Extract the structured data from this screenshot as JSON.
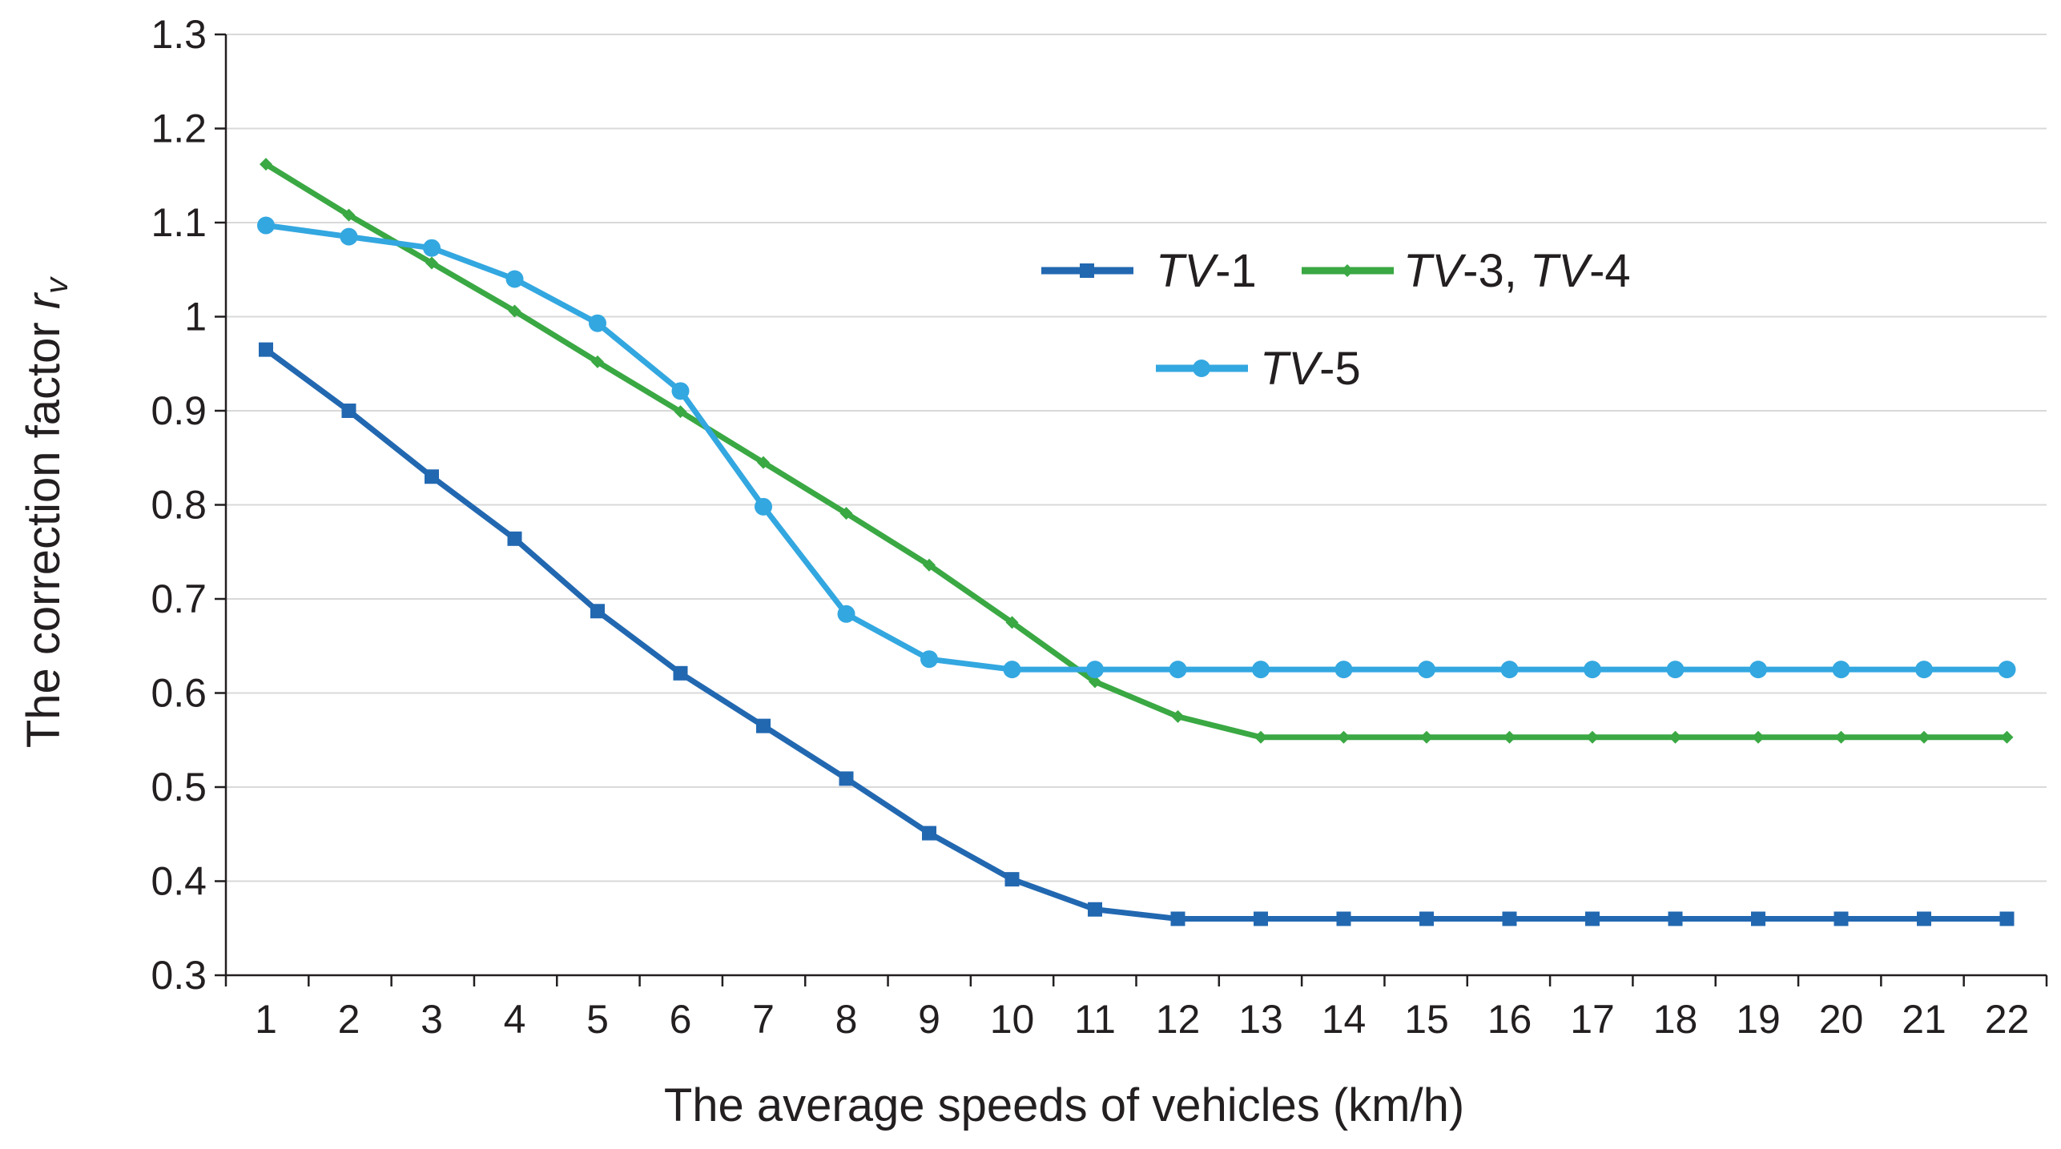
{
  "chart_data": {
    "type": "line",
    "title": "",
    "xlabel": "The average speeds of vehicles (km/h)",
    "ylabel": {
      "text": "The correction factor ",
      "symbol": "r",
      "subscript": "v"
    },
    "x": [
      1,
      2,
      3,
      4,
      5,
      6,
      7,
      8,
      9,
      10,
      11,
      12,
      13,
      14,
      15,
      16,
      17,
      18,
      19,
      20,
      21,
      22
    ],
    "x_tick_labels": [
      "1",
      "2",
      "3",
      "4",
      "5",
      "6",
      "7",
      "8",
      "9",
      "10",
      "11",
      "12",
      "13",
      "14",
      "15",
      "16",
      "17",
      "18",
      "19",
      "20",
      "21",
      "22"
    ],
    "ylim": [
      0.3,
      1.3
    ],
    "y_tick_values": [
      0.3,
      0.4,
      0.5,
      0.6,
      0.7,
      0.8,
      0.9,
      1.0,
      1.1,
      1.2,
      1.3
    ],
    "y_tick_labels": [
      "0.3",
      "0.4",
      "0.5",
      "0.6",
      "0.7",
      "0.8",
      "0.9",
      "1",
      "1.1",
      "1.2",
      "1.3"
    ],
    "grid": "horizontal",
    "legend_position": "upper-right-center",
    "series": [
      {
        "name": "TV-1",
        "legend_parts": [
          {
            "text": "TV",
            "italic": true
          },
          {
            "text": "-1",
            "italic": false
          }
        ],
        "color": "#2268b1",
        "marker": "square",
        "values": [
          0.965,
          0.9,
          0.83,
          0.764,
          0.687,
          0.621,
          0.565,
          0.509,
          0.451,
          0.402,
          0.37,
          0.36,
          0.36,
          0.36,
          0.36,
          0.36,
          0.36,
          0.36,
          0.36,
          0.36,
          0.36,
          0.36
        ]
      },
      {
        "name": "TV-3, TV-4",
        "legend_parts": [
          {
            "text": "TV",
            "italic": true
          },
          {
            "text": "-3, ",
            "italic": false
          },
          {
            "text": "TV",
            "italic": true
          },
          {
            "text": "-4",
            "italic": false
          }
        ],
        "color": "#3aa843",
        "marker": "small-diamond",
        "values": [
          1.162,
          1.108,
          1.057,
          1.006,
          0.952,
          0.899,
          0.845,
          0.791,
          0.736,
          0.675,
          0.612,
          0.575,
          0.553,
          0.553,
          0.553,
          0.553,
          0.553,
          0.553,
          0.553,
          0.553,
          0.553,
          0.553
        ]
      },
      {
        "name": "TV-5",
        "legend_parts": [
          {
            "text": "TV",
            "italic": true
          },
          {
            "text": "-5",
            "italic": false
          }
        ],
        "color": "#33a7e0",
        "marker": "circle",
        "values": [
          1.097,
          1.085,
          1.073,
          1.04,
          0.993,
          0.921,
          0.798,
          0.684,
          0.636,
          0.625,
          0.625,
          0.625,
          0.625,
          0.625,
          0.625,
          0.625,
          0.625,
          0.625,
          0.625,
          0.625,
          0.625,
          0.625
        ]
      }
    ]
  }
}
